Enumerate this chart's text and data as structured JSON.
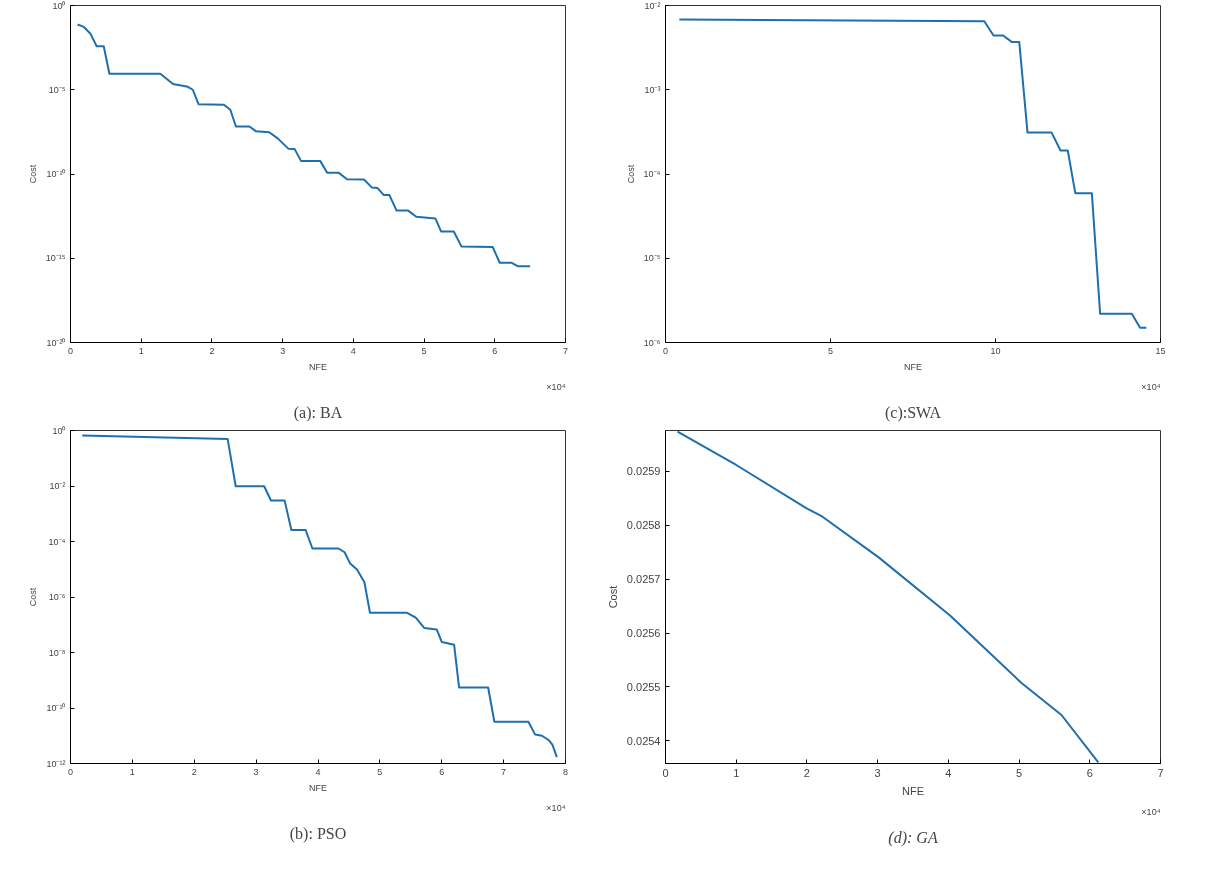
{
  "chart_data": [
    {
      "type": "line",
      "title": "(a): BA",
      "xlabel": "NFE",
      "ylabel": "Cost",
      "log": "y",
      "grid": false,
      "annotations": [
        "×10⁴"
      ],
      "xlim": [
        0,
        7
      ],
      "xticks": [
        0,
        1,
        2,
        3,
        4,
        5,
        6,
        7
      ],
      "ylim": [
        1e-20,
        1
      ],
      "yticks": [
        {
          "value": 1e-20,
          "label": "10⁻²⁰"
        },
        {
          "value": 1e-15,
          "label": "10⁻¹⁵"
        },
        {
          "value": 1e-10,
          "label": "10⁻¹⁰"
        },
        {
          "value": 1e-05,
          "label": "10⁻⁵"
        },
        {
          "value": 1,
          "label": "10⁰"
        }
      ],
      "series": [
        {
          "color": "#1f6fae",
          "x": [
            0.1,
            0.18,
            0.28,
            0.37,
            0.47,
            0.55,
            1.27,
            1.45,
            1.66,
            1.73,
            1.81,
            2.17,
            2.26,
            2.34,
            2.53,
            2.62,
            2.81,
            2.93,
            3.08,
            3.17,
            3.26,
            3.53,
            3.63,
            3.79,
            3.91,
            4.15,
            4.26,
            4.34,
            4.43,
            4.51,
            4.61,
            4.77,
            4.89,
            5.16,
            5.24,
            5.42,
            5.53,
            5.97,
            6.07,
            6.24,
            6.33,
            6.5
          ],
          "values": [
            0.074,
            0.056,
            0.022,
            0.0038,
            0.0038,
            8.9e-05,
            8.9e-05,
            2.2e-05,
            1.5e-05,
            1e-05,
            1.4e-06,
            1.3e-06,
            6.5e-07,
            6.6e-08,
            6.6e-08,
            3.5e-08,
            3e-08,
            1.3e-08,
            3.2e-09,
            3e-09,
            6e-10,
            6e-10,
            1.2e-10,
            1.2e-10,
            4.9e-11,
            4.7e-11,
            1.6e-11,
            1.5e-11,
            5.6e-12,
            5.6e-12,
            6.9e-13,
            6.9e-13,
            2.9e-13,
            2.3e-13,
            3.9e-14,
            3.9e-14,
            4.9e-15,
            4.7e-15,
            5.4e-16,
            5.4e-16,
            3.3e-16,
            3.3e-16
          ]
        }
      ]
    },
    {
      "type": "line",
      "title": "(c):SWA",
      "xlabel": "NFE",
      "ylabel": "Cost",
      "log": "y",
      "grid": false,
      "annotations": [
        "×10⁴"
      ],
      "xlim": [
        0,
        15
      ],
      "xticks": [
        0,
        5,
        10,
        15
      ],
      "ylim": [
        1e-06,
        0.01
      ],
      "yticks": [
        {
          "value": 1e-06,
          "label": "10⁻⁶"
        },
        {
          "value": 1e-05,
          "label": "10⁻⁵"
        },
        {
          "value": 0.0001,
          "label": "10⁻⁴"
        },
        {
          "value": 0.001,
          "label": "10⁻³"
        },
        {
          "value": 0.01,
          "label": "10⁻²"
        }
      ],
      "series": [
        {
          "color": "#1f6fae",
          "x": [
            0.42,
            9.66,
            9.94,
            10.23,
            10.49,
            10.72,
            10.97,
            11.7,
            11.97,
            12.19,
            12.42,
            12.92,
            13.17,
            14.13,
            14.38,
            14.57
          ],
          "values": [
            0.0068,
            0.0065,
            0.0044,
            0.0044,
            0.0037,
            0.0037,
            0.00031,
            0.00031,
            0.00019,
            0.00019,
            5.9e-05,
            5.9e-05,
            2.2e-06,
            2.2e-06,
            1.5e-06,
            1.5e-06
          ]
        }
      ]
    },
    {
      "type": "line",
      "title": "(b): PSO",
      "xlabel": "NFE",
      "ylabel": "Cost",
      "log": "y",
      "grid": false,
      "annotations": [
        "×10⁴"
      ],
      "xlim": [
        0,
        8
      ],
      "xticks": [
        0,
        1,
        2,
        3,
        4,
        5,
        6,
        7,
        8
      ],
      "ylim": [
        1e-12,
        1
      ],
      "yticks": [
        {
          "value": 1e-12,
          "label": "10⁻¹²"
        },
        {
          "value": 1e-10,
          "label": "10⁻¹⁰"
        },
        {
          "value": 1e-08,
          "label": "10⁻⁸"
        },
        {
          "value": 1e-06,
          "label": "10⁻⁶"
        },
        {
          "value": 0.0001,
          "label": "10⁻⁴"
        },
        {
          "value": 0.01,
          "label": "10⁻²"
        },
        {
          "value": 1,
          "label": "10⁰"
        }
      ],
      "series": [
        {
          "color": "#1f6fae",
          "x": [
            0.19,
            2.54,
            2.67,
            3.13,
            3.24,
            3.46,
            3.57,
            3.8,
            3.91,
            4.33,
            4.43,
            4.52,
            4.63,
            4.75,
            4.84,
            5.44,
            5.58,
            5.72,
            5.92,
            6.0,
            6.2,
            6.28,
            6.75,
            6.85,
            7.4,
            7.51,
            7.62,
            7.73,
            7.79,
            7.86
          ],
          "values": [
            0.66,
            0.49,
            0.0098,
            0.0098,
            0.003,
            0.003,
            0.00026,
            0.00026,
            5.6e-05,
            5.6e-05,
            4.1e-05,
            1.6e-05,
            9.8e-06,
            3.4e-06,
            2.7e-07,
            2.7e-07,
            1.8e-07,
            7.6e-08,
            6.7e-08,
            2.4e-08,
            1.9e-08,
            5.5e-10,
            5.5e-10,
            3.2e-11,
            3.2e-11,
            1.1e-11,
            1e-11,
            6.9e-12,
            4.7e-12,
            1.7e-12
          ]
        }
      ]
    },
    {
      "type": "line",
      "title": "(d): GA",
      "xlabel": "NFE",
      "ylabel": "Cost",
      "grid": false,
      "annotations": [
        "×10⁴"
      ],
      "xlim": [
        0,
        7
      ],
      "xticks": [
        0,
        1,
        2,
        3,
        4,
        5,
        6,
        7
      ],
      "ylim": [
        0.025358,
        0.025976
      ],
      "yticks": [
        0.0254,
        0.0255,
        0.0256,
        0.0257,
        0.0258,
        0.0259
      ],
      "series": [
        {
          "color": "#1f6fae",
          "x": [
            0.17,
            1.0,
            1.99,
            2.22,
            3.01,
            4.02,
            5.03,
            5.6,
            6.12
          ],
          "values": [
            0.025974,
            0.025912,
            0.025832,
            0.025816,
            0.025741,
            0.025633,
            0.025508,
            0.025448,
            0.02536
          ]
        }
      ]
    }
  ]
}
